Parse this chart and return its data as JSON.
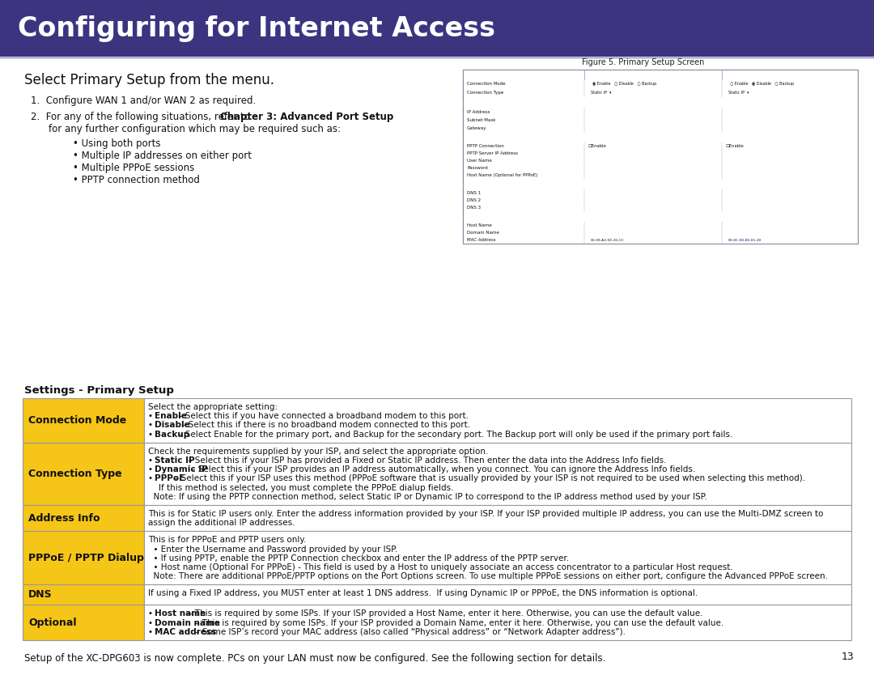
{
  "title": "Configuring for Internet Access",
  "title_bg": "#3d3480",
  "title_color": "#ffffff",
  "title_fontsize": 26,
  "page_bg": "#ffffff",
  "intro_heading": "Select Primary Setup from the menu.",
  "figure_caption": "Figure 5. Primary Setup Screen",
  "table_header_bg": "#f5c518",
  "table_row_alt_bg": "#f0f0f8",
  "table_border": "#999999",
  "settings_header": "Settings - Primary Setup",
  "table_rows": [
    {
      "label": "Connection Mode",
      "lines": [
        {
          "text": "Select the appropriate setting:",
          "bold_prefix": ""
        },
        {
          "text": "• Enable – Select this if you have connected a broadband modem to this port.",
          "bold_prefix": "Enable"
        },
        {
          "text": "• Disable – Select this if there is no broadband modem connected to this port.",
          "bold_prefix": "Disable"
        },
        {
          "text": "• Backup – Select Enable for the primary port, and Backup for the secondary port. The Backup port will only be used if the primary port fails.",
          "bold_prefix": "Backup"
        }
      ]
    },
    {
      "label": "Connection Type",
      "lines": [
        {
          "text": "Check the requirements supplied by your ISP, and select the appropriate option.",
          "bold_prefix": ""
        },
        {
          "text": "• Static IP – Select this if your ISP has provided a Fixed or Static IP address. Then enter the data into the Address Info fields.",
          "bold_prefix": "Static IP"
        },
        {
          "text": "• Dynamic IP – Select this if your ISP provides an IP address automatically, when you connect. You can ignore the Address Info fields.",
          "bold_prefix": "Dynamic IP"
        },
        {
          "text": "• PPPoE – Select this if your ISP uses this method (PPPoE software that is usually provided by your ISP is not required to be used when selecting this method).",
          "bold_prefix": "PPPoE"
        },
        {
          "text": "    If this method is selected, you must complete the PPPoE dialup fields.",
          "bold_prefix": ""
        },
        {
          "text": "  Note: If using the PPTP connection method, select Static IP or Dynamic IP to correspond to the IP address method used by your ISP.",
          "bold_prefix": ""
        }
      ]
    },
    {
      "label": "Address Info",
      "lines": [
        {
          "text": "This is for Static IP users only. Enter the address information provided by your ISP. If your ISP provided multiple IP address, you can use the Multi-DMZ screen to",
          "bold_prefix": ""
        },
        {
          "text": "assign the additional IP addresses.",
          "bold_prefix": ""
        }
      ]
    },
    {
      "label": "PPPoE / PPTP Dialup",
      "lines": [
        {
          "text": "This is for PPPoE and PPTP users only.",
          "bold_prefix": ""
        },
        {
          "text": "  • Enter the Username and Password provided by your ISP.",
          "bold_prefix": ""
        },
        {
          "text": "  • If using PPTP, enable the PPTP Connection checkbox and enter the IP address of the PPTP server.",
          "bold_prefix": ""
        },
        {
          "text": "  • Host name (Optional For PPPoE) - This field is used by a Host to uniquely associate an access concentrator to a particular Host request.",
          "bold_prefix": ""
        },
        {
          "text": "  Note: There are additional PPPoE/PPTP options on the Port Options screen. To use multiple PPPoE sessions on either port, configure the Advanced PPPoE screen.",
          "bold_prefix": ""
        }
      ]
    },
    {
      "label": "DNS",
      "lines": [
        {
          "text": "If using a Fixed IP address, you MUST enter at least 1 DNS address.  If using Dynamic IP or PPPoE, the DNS information is optional.",
          "bold_prefix": ""
        }
      ]
    },
    {
      "label": "Optional",
      "lines": [
        {
          "text": "• Host name – This is required by some ISPs. If your ISP provided a Host Name, enter it here. Otherwise, you can use the default value.",
          "bold_prefix": "Host name"
        },
        {
          "text": "• Domain name – This is required by some ISPs. If your ISP provided a Domain Name, enter it here. Otherwise, you can use the default value.",
          "bold_prefix": "Domain name"
        },
        {
          "text": "• MAC address – Some ISP’s record your MAC address (also called “Physical address” or “Network Adapter address”).",
          "bold_prefix": "MAC address"
        }
      ]
    }
  ],
  "footer_text": "Setup of the XC-DPG603 is now complete. PCs on your LAN must now be configured. See the following section for details.",
  "page_number": "13",
  "intro_bullet_items": [
    "• Using both ports",
    "• Multiple IP addresses on either port",
    "• Multiple PPPoE sessions",
    "• PPTP connection method"
  ],
  "screen_dark_blue": "#3333aa",
  "screen_light_blue": "#ccccff",
  "screen_row_alt": "#e8e8f8"
}
